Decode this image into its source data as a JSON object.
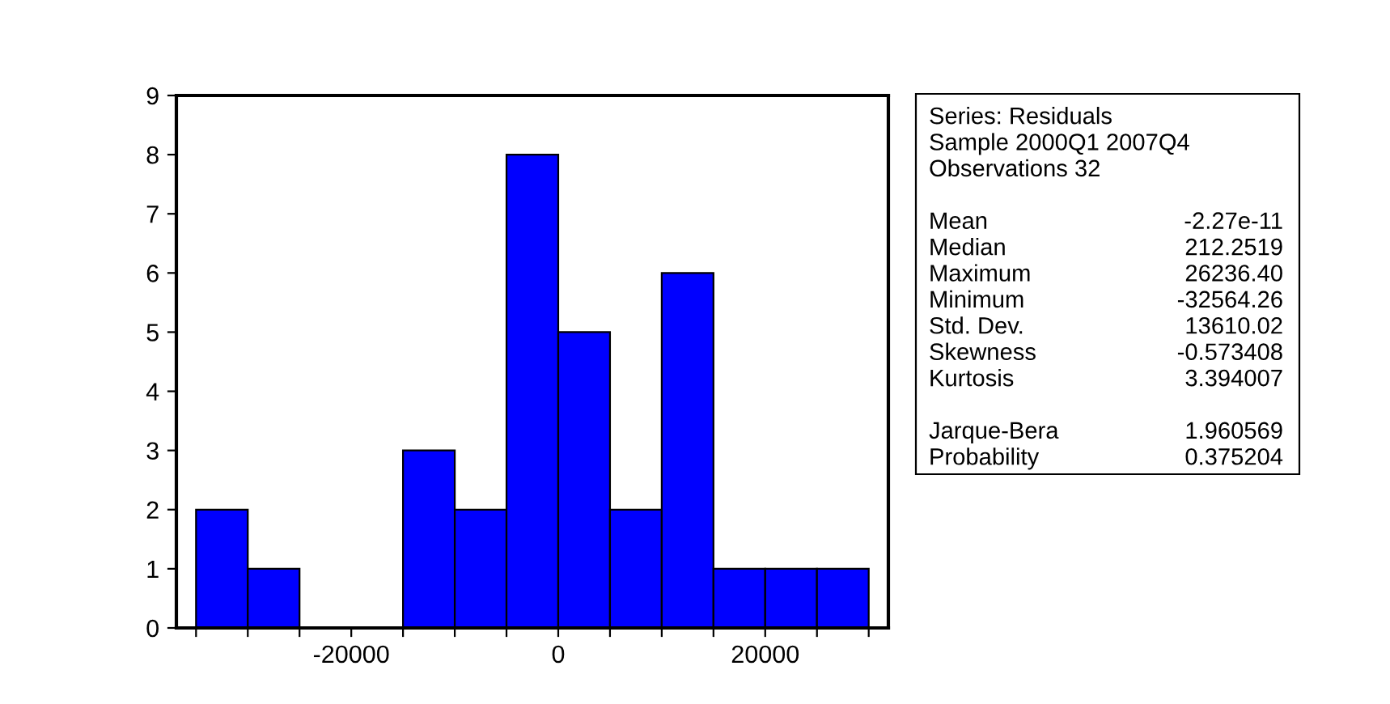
{
  "chart_data": {
    "type": "histogram",
    "bins": [
      -35000,
      -30000,
      -25000,
      -20000,
      -15000,
      -10000,
      -5000,
      0,
      5000,
      10000,
      15000,
      20000,
      25000,
      30000
    ],
    "values": [
      2,
      1,
      0,
      0,
      3,
      2,
      8,
      5,
      2,
      6,
      1,
      1,
      1
    ],
    "color": "#0000ff",
    "xlim": [
      -36900,
      31900
    ],
    "xticks": [
      {
        "value": -35000,
        "label": null
      },
      {
        "value": -30000,
        "label": null
      },
      {
        "value": -25000,
        "label": null
      },
      -20000,
      {
        "value": -15000,
        "label": null
      },
      {
        "value": -10000,
        "label": null
      },
      {
        "value": -5000,
        "label": null
      },
      0,
      {
        "value": 5000,
        "label": null
      },
      {
        "value": 10000,
        "label": null
      },
      {
        "value": 15000,
        "label": null
      },
      20000,
      {
        "value": 25000,
        "label": null
      },
      {
        "value": 30000,
        "label": null
      }
    ],
    "ylim": [
      0,
      9
    ],
    "yticks": [
      0,
      1,
      2,
      3,
      4,
      5,
      6,
      7,
      8,
      9
    ],
    "grid": false,
    "legend": false,
    "annotations": [
      "Series: Residuals",
      "Sample 2000Q1 2007Q4",
      "Observations 32",
      "Mean",
      "-2.27e-11",
      "Median",
      "212.2519",
      "Maximum",
      "26236.40",
      "Minimum",
      "-32564.26",
      "Std. Dev.",
      "13610.02",
      "Skewness",
      "-0.573408",
      "Kurtosis",
      "3.394007",
      "Jarque-Bera",
      "1.960569",
      "Probability",
      "0.375204"
    ]
  }
}
